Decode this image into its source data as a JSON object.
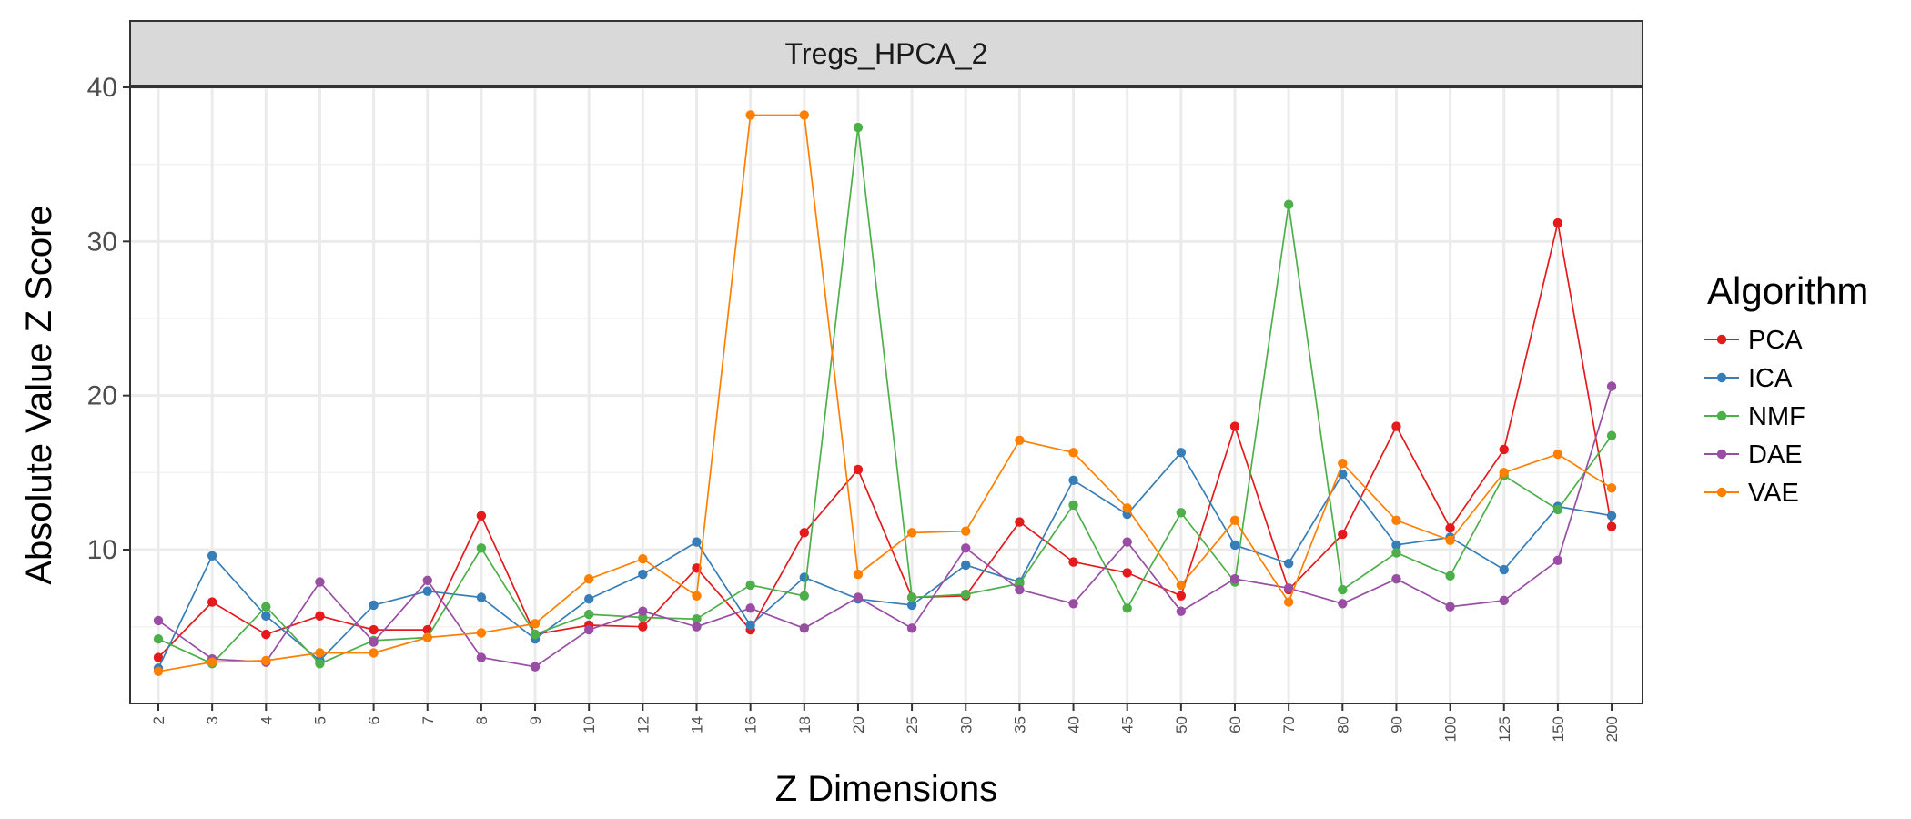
{
  "chart_data": {
    "type": "line",
    "title": "Tregs_HPCA_2",
    "xlabel": "Z Dimensions",
    "ylabel": "Absolute Value Z Score",
    "categories": [
      "2",
      "3",
      "4",
      "5",
      "6",
      "7",
      "8",
      "9",
      "10",
      "12",
      "14",
      "16",
      "18",
      "20",
      "25",
      "30",
      "35",
      "40",
      "45",
      "50",
      "60",
      "70",
      "80",
      "90",
      "100",
      "125",
      "150",
      "200"
    ],
    "ylim": [
      0,
      40
    ],
    "yticks": [
      10,
      20,
      30,
      40
    ],
    "grid": true,
    "legend": {
      "title": "Algorithm",
      "position": "right"
    },
    "series": [
      {
        "name": "PCA",
        "color": "#E41A1C",
        "values": [
          3.0,
          6.6,
          4.5,
          5.7,
          4.8,
          4.8,
          12.2,
          4.5,
          5.1,
          5.0,
          8.8,
          4.8,
          11.1,
          15.2,
          6.9,
          7.0,
          11.8,
          9.2,
          8.5,
          7.0,
          18.0,
          7.4,
          11.0,
          18.0,
          11.4,
          16.5,
          31.2,
          11.5
        ]
      },
      {
        "name": "ICA",
        "color": "#377EB8",
        "values": [
          2.3,
          9.6,
          5.7,
          2.8,
          6.4,
          7.3,
          6.9,
          4.2,
          6.8,
          8.4,
          10.5,
          5.1,
          8.2,
          6.8,
          6.4,
          9.0,
          7.9,
          14.5,
          12.3,
          16.3,
          10.3,
          9.1,
          14.9,
          10.3,
          10.8,
          8.7,
          12.8,
          12.2
        ]
      },
      {
        "name": "NMF",
        "color": "#4DAF4A",
        "values": [
          4.2,
          2.6,
          6.3,
          2.6,
          4.1,
          4.3,
          10.1,
          4.5,
          5.8,
          5.6,
          5.5,
          7.7,
          7.0,
          37.4,
          6.9,
          7.1,
          7.8,
          12.9,
          6.2,
          12.4,
          7.9,
          32.4,
          7.4,
          9.8,
          8.3,
          14.8,
          12.6,
          17.4
        ]
      },
      {
        "name": "DAE",
        "color": "#984EA3",
        "values": [
          5.4,
          2.9,
          2.7,
          7.9,
          4.0,
          8.0,
          3.0,
          2.4,
          4.8,
          6.0,
          5.0,
          6.2,
          4.9,
          6.9,
          4.9,
          10.1,
          7.4,
          6.5,
          10.5,
          6.0,
          8.1,
          7.5,
          6.5,
          8.1,
          6.3,
          6.7,
          9.3,
          20.6
        ]
      },
      {
        "name": "VAE",
        "color": "#FF7F00",
        "values": [
          2.1,
          2.7,
          2.8,
          3.3,
          3.3,
          4.3,
          4.6,
          5.2,
          8.1,
          9.4,
          7.0,
          38.2,
          38.2,
          8.4,
          11.1,
          11.2,
          17.1,
          16.3,
          12.7,
          7.7,
          11.9,
          6.6,
          15.6,
          11.9,
          10.6,
          15.0,
          16.2,
          14.0
        ]
      }
    ]
  }
}
